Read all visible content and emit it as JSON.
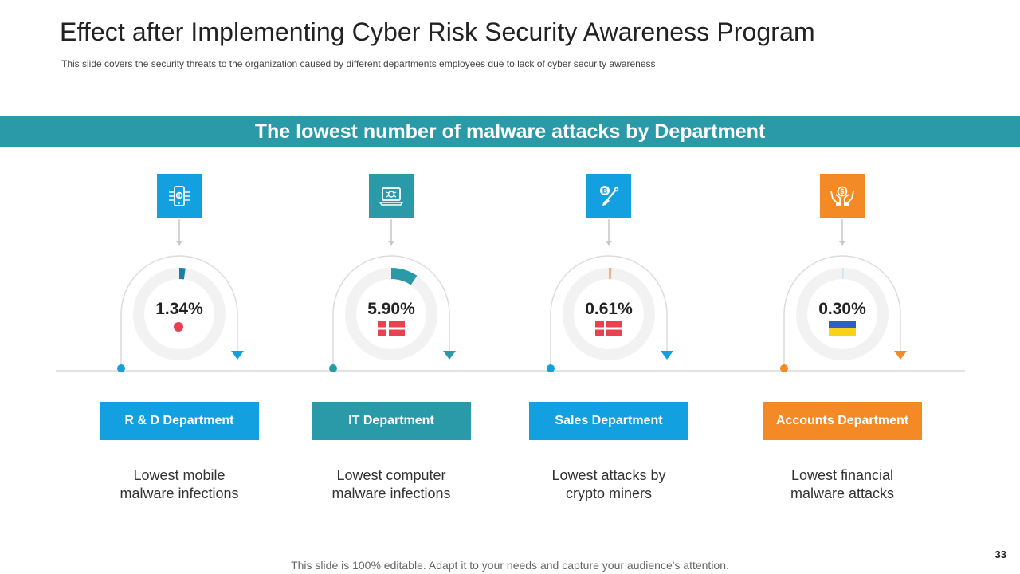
{
  "slide": {
    "title": "Effect after Implementing Cyber Risk Security Awareness Program",
    "subtitle": "This slide covers the security threats to the organization caused by different departments employees due to lack of cyber security awareness",
    "banner": "The lowest number of malware attacks by Department",
    "footer": "This slide is 100% editable. Adapt it to your needs and capture your audience's attention.",
    "page_number": "33"
  },
  "departments": [
    {
      "label": "R & D Department",
      "value": "1.34%",
      "fraction": 0.0134,
      "description_line1": "Lowest mobile",
      "description_line2": "malware infections",
      "color": "#13a0e0",
      "ring_color": "#1b7fa0",
      "icon": "mobile-bug-icon",
      "marker": "circle"
    },
    {
      "label": "IT Department",
      "value": "5.90%",
      "fraction": 0.059,
      "description_line1": "Lowest computer",
      "description_line2": "malware infections",
      "color": "#2b9aa8",
      "ring_color": "#2b9aa8",
      "icon": "laptop-bug-icon",
      "marker": "flag-red"
    },
    {
      "label": "Sales Department",
      "value": "0.61%",
      "fraction": 0.0061,
      "description_line1": "Lowest attacks by",
      "description_line2": "crypto miners",
      "color": "#13a0e0",
      "ring_color": "#f2b27a",
      "icon": "bitcoin-shovel-icon",
      "marker": "flag-red"
    },
    {
      "label": "Accounts  Department",
      "value": "0.30%",
      "fraction": 0.003,
      "description_line1": "Lowest financial",
      "description_line2": "malware attacks",
      "color": "#f48a26",
      "ring_color": "#c9e6ea",
      "icon": "hands-money-icon",
      "marker": "flag-ukraine"
    }
  ]
}
